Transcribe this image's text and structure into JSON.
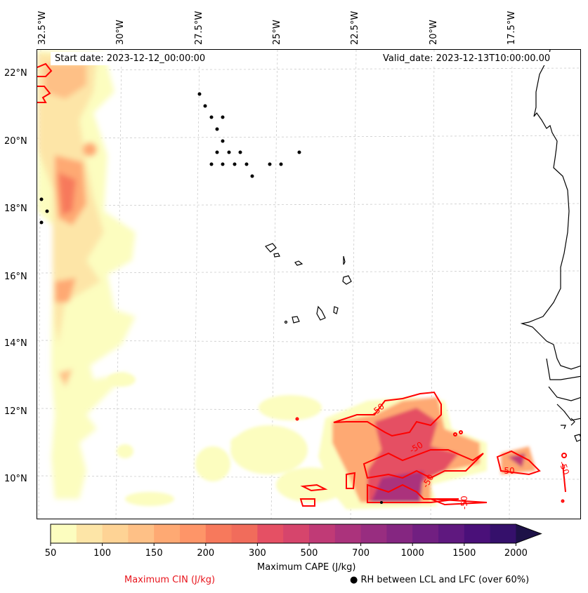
{
  "map": {
    "start_date": "Start date: 2023-12-12_00:00:00",
    "valid_date": "Valid_date: 2023-12-13T10:00:00.00",
    "lon_labels": [
      "32.5°W",
      "30°W",
      "27.5°W",
      "25°W",
      "22.5°W",
      "20°W",
      "17.5°W"
    ],
    "lat_labels": [
      "22°N",
      "20°N",
      "18°N",
      "16°N",
      "14°N",
      "12°N",
      "10°N"
    ],
    "cin_contour_labels": [
      "-50",
      "-50",
      "-50",
      "-50",
      "-50",
      "-50",
      "-50"
    ]
  },
  "colorbar": {
    "title": "Maximum CAPE (J/kg)",
    "levels": [
      50,
      75,
      100,
      125,
      150,
      175,
      200,
      250,
      300,
      400,
      500,
      600,
      700,
      850,
      1000,
      1250,
      1500,
      1750,
      2000
    ],
    "tick_labels": [
      "50",
      "100",
      "150",
      "200",
      "300",
      "500",
      "700",
      "1000",
      "1500",
      "2000"
    ],
    "colors": [
      "#fcfdbf",
      "#fde5a7",
      "#fed395",
      "#fec086",
      "#fea973",
      "#fe9568",
      "#f7795c",
      "#f16c5b",
      "#e55064",
      "#d6456c",
      "#c03a76",
      "#ab337c",
      "#982d80",
      "#852681",
      "#711f81",
      "#5f187f",
      "#4a1079",
      "#35106b",
      "#1d1147"
    ],
    "extend": "max"
  },
  "legend": {
    "cin_label": "Maximum CIN (J/kg)",
    "rh_label": "● RH between LCL and LFC (over 60%)",
    "cin_color": "#ff0000"
  },
  "chart_data": {
    "type": "heatmap",
    "title": "",
    "subtitle_left": "Start date: 2023-12-12_00:00:00",
    "subtitle_right": "Valid_date: 2023-12-13T10:00:00.00",
    "xlabel": "Longitude",
    "ylabel": "Latitude",
    "x_ticks": [
      "32.5°W",
      "30°W",
      "27.5°W",
      "25°W",
      "22.5°W",
      "20°W",
      "17.5°W"
    ],
    "y_ticks": [
      "22°N",
      "20°N",
      "18°N",
      "16°N",
      "14°N",
      "12°N",
      "10°N"
    ],
    "xlim": [
      -33.3,
      -15.6
    ],
    "ylim": [
      8.9,
      22.7
    ],
    "grid": true,
    "series": [
      {
        "name": "Maximum CAPE (J/kg)",
        "kind": "filled contour",
        "levels": [
          50,
          75,
          100,
          125,
          150,
          175,
          200,
          250,
          300,
          400,
          500,
          600,
          700,
          850,
          1000,
          1250,
          1500,
          1750,
          2000
        ],
        "regions": [
          {
            "desc": "western band",
            "lon": [
              -33.2,
              -30.5
            ],
            "lat": [
              9.5,
              22.5
            ],
            "peak": 400
          },
          {
            "desc": "southern convective cluster",
            "lon": [
              -23.0,
              -18.5
            ],
            "lat": [
              9.4,
              12.6
            ],
            "peak": 1000
          },
          {
            "desc": "eastern cluster",
            "lon": [
              -18.3,
              -16.6
            ],
            "lat": [
              9.8,
              10.8
            ],
            "peak": 500
          },
          {
            "desc": "scattered low CAPE",
            "lon": [
              -30.5,
              -23.0
            ],
            "lat": [
              9.3,
              13.5
            ],
            "peak": 100
          }
        ]
      },
      {
        "name": "Maximum CIN (J/kg)",
        "kind": "line contour",
        "levels": [
          -50
        ],
        "color": "#ff0000"
      },
      {
        "name": "RH between LCL and LFC (over 60%)",
        "kind": "scatter markers",
        "color": "#000000"
      }
    ],
    "colorbar": {
      "label": "Maximum CAPE (J/kg)",
      "ticks": [
        50,
        100,
        150,
        200,
        300,
        500,
        700,
        1000,
        1500,
        2000
      ],
      "extend": "max"
    }
  }
}
